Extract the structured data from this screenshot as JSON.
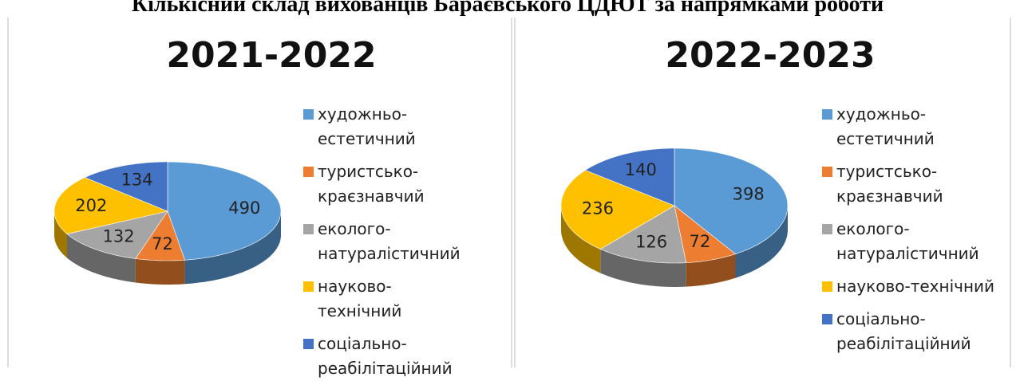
{
  "title": "Кількісний склад вихованців Бараєвського ЦДЮТ за напрямками роботи",
  "chart_data": [
    {
      "type": "pie",
      "title": "2021-2022",
      "categories": [
        "художньо-естетичний",
        "туристсько-краєзнавчий",
        "еколого-натуралістичний",
        "науково-технічний",
        "соціально-реабілітаційний"
      ],
      "values": [
        490,
        72,
        132,
        202,
        134
      ],
      "colors": [
        "#5b9bd5",
        "#ed7d31",
        "#a5a5a5",
        "#ffc000",
        "#4472c4"
      ]
    },
    {
      "type": "pie",
      "title": "2022-2023",
      "categories": [
        "художньо-естетичний",
        "туристсько-краєзнавчий",
        "еколого-натуралістичний",
        "науково-технічний",
        "соціально-реабілітаційний"
      ],
      "values": [
        398,
        72,
        126,
        236,
        140
      ],
      "colors": [
        "#5b9bd5",
        "#ed7d31",
        "#a5a5a5",
        "#ffc000",
        "#4472c4"
      ]
    }
  ]
}
